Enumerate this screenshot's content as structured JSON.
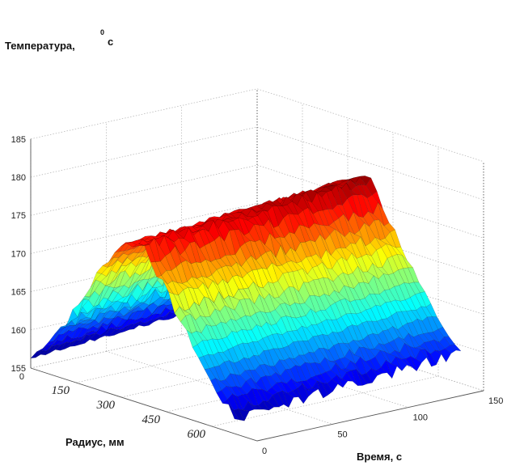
{
  "chart_data": {
    "type": "surface-3d",
    "zlabel": "Температура,",
    "zlabel_unit_sup": "0",
    "zlabel_unit": "с",
    "xlabel": "Радиус, мм",
    "ylabel": "Время, с",
    "z_ticks": [
      "155",
      "160",
      "165",
      "170",
      "175",
      "180",
      "185"
    ],
    "x_ticks": [
      "0",
      "150",
      "300",
      "450",
      "600"
    ],
    "y_ticks": [
      "0",
      "50",
      "100",
      "150"
    ],
    "zlim": [
      155,
      185
    ],
    "xlim": [
      0,
      750
    ],
    "ylim": [
      0,
      150
    ],
    "grid": true,
    "colormap": "jet",
    "profile": {
      "radius_mm": [
        0,
        75,
        150,
        225,
        300,
        375,
        450,
        525,
        600,
        675
      ],
      "temperature_c": [
        156.3,
        160.3,
        164.5,
        170.5,
        175.0,
        176.0,
        170.5,
        165.5,
        160.5,
        157.0
      ]
    },
    "time_range_s": [
      0,
      150
    ],
    "time_trend": "temperature rises slightly with time (about +2 at t=150)"
  }
}
